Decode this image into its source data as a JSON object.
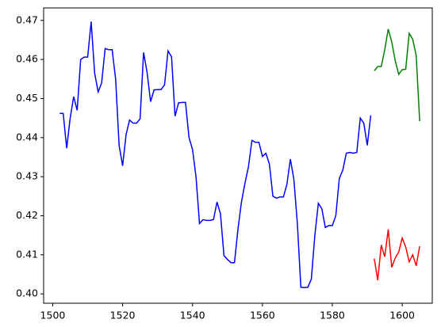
{
  "chart_data": {
    "type": "line",
    "xlim": [
      1497.4,
      1608.6
    ],
    "ylim": [
      0.3976,
      0.4732
    ],
    "xticks": [
      1500,
      1520,
      1540,
      1560,
      1580,
      1600
    ],
    "yticks": [
      {
        "value": 0.4,
        "label": "0.40"
      },
      0.41,
      0.42,
      0.43,
      0.44,
      0.45,
      0.46,
      0.47
    ],
    "series": [
      {
        "color": "#0000ff",
        "x": [
          1502,
          1503,
          1504,
          1505,
          1506,
          1507,
          1508,
          1509,
          1510,
          1511,
          1512,
          1513,
          1514,
          1515,
          1516,
          1517,
          1518,
          1519,
          1520,
          1521,
          1522,
          1523,
          1524,
          1525,
          1526,
          1527,
          1528,
          1529,
          1530,
          1531,
          1532,
          1533,
          1534,
          1535,
          1536,
          1537,
          1538,
          1539,
          1540,
          1541,
          1542,
          1543,
          1544,
          1545,
          1546,
          1547,
          1548,
          1549,
          1550,
          1551,
          1552,
          1553,
          1554,
          1555,
          1556,
          1557,
          1558,
          1559,
          1560,
          1561,
          1562,
          1563,
          1564,
          1565,
          1566,
          1567,
          1568,
          1569,
          1570,
          1571,
          1572,
          1573,
          1574,
          1575,
          1576,
          1577,
          1578,
          1579,
          1580,
          1581,
          1582,
          1583,
          1584,
          1585,
          1586,
          1587,
          1588,
          1589,
          1590,
          1591
        ],
        "values": [
          0.4462,
          0.4462,
          0.4373,
          0.445,
          0.4505,
          0.447,
          0.46,
          0.4606,
          0.4606,
          0.4697,
          0.4565,
          0.4517,
          0.454,
          0.4628,
          0.4625,
          0.4625,
          0.455,
          0.438,
          0.4328,
          0.4408,
          0.4445,
          0.4437,
          0.4437,
          0.4448,
          0.4618,
          0.4567,
          0.4492,
          0.4522,
          0.4523,
          0.4523,
          0.4535,
          0.4622,
          0.4607,
          0.4455,
          0.4489,
          0.449,
          0.449,
          0.44,
          0.437,
          0.43,
          0.418,
          0.419,
          0.4188,
          0.4188,
          0.419,
          0.4235,
          0.4205,
          0.4098,
          0.4088,
          0.408,
          0.408,
          0.4165,
          0.4235,
          0.4283,
          0.4325,
          0.4393,
          0.4388,
          0.4388,
          0.4352,
          0.436,
          0.4332,
          0.425,
          0.4245,
          0.4248,
          0.4248,
          0.428,
          0.4345,
          0.4293,
          0.418,
          0.4017,
          0.4016,
          0.4017,
          0.4038,
          0.415,
          0.4232,
          0.4218,
          0.417,
          0.4175,
          0.4175,
          0.42,
          0.4295,
          0.4317,
          0.436,
          0.4362,
          0.436,
          0.4362,
          0.445,
          0.4437,
          0.438,
          0.4457
        ]
      },
      {
        "color": "#008000",
        "x": [
          1592,
          1593,
          1594,
          1595,
          1596,
          1597,
          1598,
          1599,
          1600,
          1601,
          1602,
          1603,
          1604,
          1605
        ],
        "values": [
          0.4571,
          0.4582,
          0.4582,
          0.4625,
          0.4678,
          0.4645,
          0.4597,
          0.4562,
          0.4574,
          0.4575,
          0.4667,
          0.4652,
          0.461,
          0.4442
        ]
      },
      {
        "color": "#ff0000",
        "x": [
          1592,
          1593,
          1594,
          1595,
          1596,
          1597,
          1598,
          1599,
          1600,
          1601,
          1602,
          1603,
          1604,
          1605
        ],
        "values": [
          0.409,
          0.4035,
          0.4125,
          0.4095,
          0.4165,
          0.4068,
          0.4092,
          0.4107,
          0.4143,
          0.412,
          0.4082,
          0.41,
          0.4072,
          0.4122
        ]
      }
    ]
  }
}
